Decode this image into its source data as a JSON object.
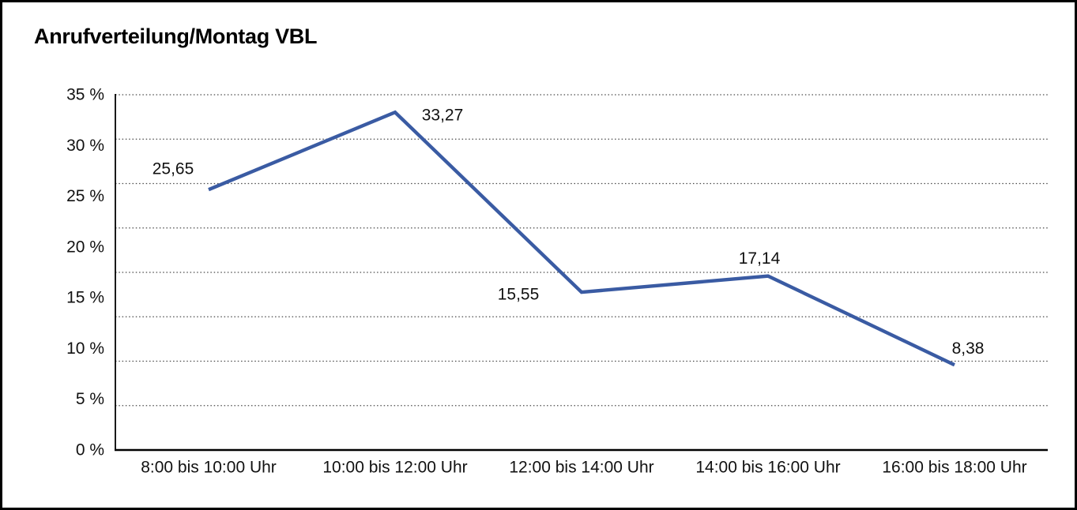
{
  "chart_data": {
    "type": "line",
    "title": "Anrufverteilung/Montag VBL",
    "categories": [
      "8:00 bis 10:00 Uhr",
      "10:00 bis 12:00 Uhr",
      "12:00 bis 14:00 Uhr",
      "14:00 bis 16:00 Uhr",
      "16:00 bis 18:00 Uhr"
    ],
    "values": [
      25.65,
      33.27,
      15.55,
      17.14,
      8.38
    ],
    "point_labels": [
      "25,65",
      "33,27",
      "15,55",
      "17,14",
      "8,38"
    ],
    "xlabel": "",
    "ylabel": "",
    "ylim": [
      0,
      35
    ],
    "y_tick_values": [
      0,
      5,
      10,
      15,
      20,
      25,
      30,
      35
    ],
    "y_tick_labels": [
      "0 %",
      "5 %",
      "10 %",
      "15 %",
      "20 %",
      "25 %",
      "30 %",
      "35 %"
    ],
    "legend": "none",
    "grid": "horizontal-dotted",
    "gridline_segments": 8,
    "colors": {
      "line": "#3A5BA3",
      "axis": "#000000",
      "text": "#111111",
      "gridline": "#4a4a4a",
      "background": "#ffffff",
      "frame_border": "#000000"
    }
  }
}
